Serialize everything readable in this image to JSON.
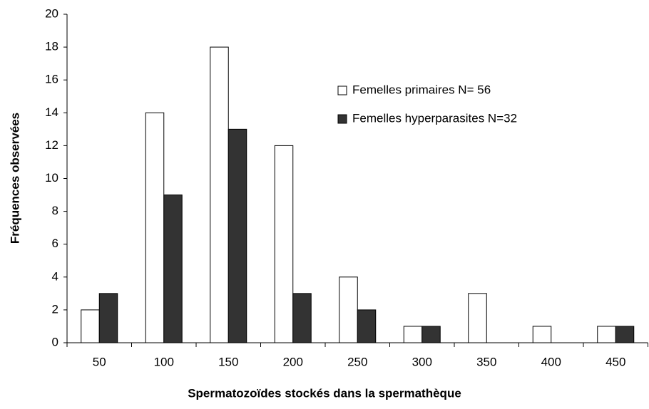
{
  "chart_data": {
    "type": "bar",
    "x_label": "Spermatozoïdes stockés dans la spermathèque",
    "y_label": "Fréquences observées",
    "categories": [
      "50",
      "100",
      "150",
      "200",
      "250",
      "300",
      "350",
      "400",
      "450"
    ],
    "series": [
      {
        "name": "Femelles primaires N= 56",
        "color": "#ffffff",
        "values": [
          2,
          14,
          18,
          12,
          4,
          1,
          3,
          1,
          1
        ]
      },
      {
        "name": "Femelles hyperparasites N=32",
        "color": "#333333",
        "values": [
          3,
          9,
          13,
          3,
          2,
          1,
          0,
          0,
          1
        ]
      }
    ],
    "ylim": [
      0,
      20
    ],
    "yticks": [
      0,
      2,
      4,
      6,
      8,
      10,
      12,
      14,
      16,
      18,
      20
    ],
    "grid": false
  }
}
